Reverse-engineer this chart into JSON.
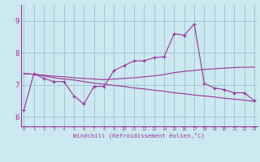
{
  "xlabel": "Windchill (Refroidissement éolien,°C)",
  "bg_color": "#cce8f0",
  "line_color": "#993399",
  "grid_color": "#99bbcc",
  "x_ticks": [
    0,
    1,
    2,
    3,
    4,
    5,
    6,
    7,
    8,
    9,
    10,
    11,
    12,
    13,
    14,
    15,
    16,
    17,
    18,
    19,
    20,
    21,
    22,
    23
  ],
  "y_ticks": [
    6,
    7,
    8,
    9
  ],
  "ylim": [
    5.7,
    9.5
  ],
  "xlim": [
    -0.3,
    23.3
  ],
  "curve1": [
    6.2,
    7.35,
    7.2,
    7.1,
    7.1,
    6.65,
    6.4,
    6.95,
    6.95,
    7.45,
    7.6,
    7.75,
    7.75,
    7.85,
    7.88,
    8.6,
    8.55,
    8.9,
    7.05,
    6.9,
    6.85,
    6.75,
    6.75,
    6.5
  ],
  "curve2": [
    7.35,
    7.33,
    7.3,
    7.27,
    7.25,
    7.22,
    7.2,
    7.18,
    7.16,
    7.18,
    7.2,
    7.22,
    7.25,
    7.28,
    7.32,
    7.38,
    7.42,
    7.45,
    7.48,
    7.5,
    7.52,
    7.54,
    7.55,
    7.55
  ],
  "curve3": [
    7.35,
    7.33,
    7.28,
    7.22,
    7.18,
    7.15,
    7.1,
    7.05,
    7.02,
    6.98,
    6.95,
    6.9,
    6.87,
    6.83,
    6.8,
    6.75,
    6.72,
    6.68,
    6.65,
    6.62,
    6.58,
    6.55,
    6.52,
    6.48
  ]
}
